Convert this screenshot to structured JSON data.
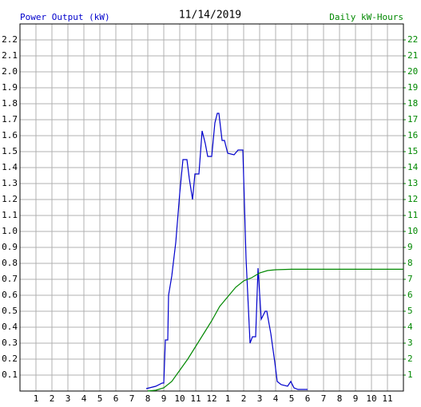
{
  "chart_data": {
    "type": "line",
    "title": "11/14/2019",
    "xlim": [
      0,
      24
    ],
    "xticks": [
      {
        "value": 1,
        "label": "1"
      },
      {
        "value": 2,
        "label": "2"
      },
      {
        "value": 3,
        "label": "3"
      },
      {
        "value": 4,
        "label": "4"
      },
      {
        "value": 5,
        "label": "5"
      },
      {
        "value": 6,
        "label": "6"
      },
      {
        "value": 7,
        "label": "7"
      },
      {
        "value": 8,
        "label": "8"
      },
      {
        "value": 9,
        "label": "9"
      },
      {
        "value": 10,
        "label": "10"
      },
      {
        "value": 11,
        "label": "11"
      },
      {
        "value": 12,
        "label": "12"
      },
      {
        "value": 13,
        "label": "1"
      },
      {
        "value": 14,
        "label": "2"
      },
      {
        "value": 15,
        "label": "3"
      },
      {
        "value": 16,
        "label": "4"
      },
      {
        "value": 17,
        "label": "5"
      },
      {
        "value": 18,
        "label": "6"
      },
      {
        "value": 19,
        "label": "7"
      },
      {
        "value": 20,
        "label": "8"
      },
      {
        "value": 21,
        "label": "9"
      },
      {
        "value": 22,
        "label": "10"
      },
      {
        "value": 23,
        "label": "11"
      }
    ],
    "ylim": [
      0,
      2.3
    ],
    "yticks": [
      0.1,
      0.2,
      0.3,
      0.4,
      0.5,
      0.6,
      0.7,
      0.8,
      0.9,
      {
        "value": 1,
        "label": "1.0"
      },
      1.1,
      1.2,
      1.3,
      1.4,
      1.5,
      1.6,
      1.7,
      1.8,
      1.9,
      {
        "value": 2,
        "label": "2.0"
      },
      2.1,
      2.2
    ],
    "y2lim": [
      0,
      23
    ],
    "y2ticks": [
      1,
      2,
      3,
      4,
      5,
      6,
      7,
      8,
      9,
      10,
      11,
      12,
      13,
      14,
      15,
      16,
      17,
      18,
      19,
      20,
      21,
      22
    ],
    "grid": true,
    "series": [
      {
        "name": "Power Output (kW)",
        "color": "#0000cc",
        "x": [
          7.9,
          8.5,
          8.9,
          9.0,
          9.1,
          9.25,
          9.3,
          9.5,
          9.75,
          10.0,
          10.2,
          10.45,
          10.6,
          10.8,
          10.95,
          11.2,
          11.4,
          11.6,
          11.75,
          12.0,
          12.2,
          12.35,
          12.45,
          12.65,
          12.8,
          13.0,
          13.4,
          13.65,
          13.95,
          14.15,
          14.4,
          14.55,
          14.75,
          14.9,
          15.1,
          15.35,
          15.45,
          15.7,
          15.95,
          16.1,
          16.35,
          16.75,
          16.95,
          17.15,
          17.4,
          18.0
        ],
        "values": [
          0.015,
          0.03,
          0.05,
          0.05,
          0.32,
          0.32,
          0.6,
          0.72,
          0.93,
          1.24,
          1.45,
          1.45,
          1.33,
          1.2,
          1.36,
          1.36,
          1.63,
          1.55,
          1.47,
          1.47,
          1.68,
          1.74,
          1.74,
          1.57,
          1.57,
          1.49,
          1.48,
          1.51,
          1.51,
          0.83,
          0.3,
          0.34,
          0.34,
          0.77,
          0.45,
          0.5,
          0.5,
          0.36,
          0.18,
          0.06,
          0.04,
          0.03,
          0.06,
          0.02,
          0.01,
          0.01
        ]
      },
      {
        "name": "Daily kW-Hours",
        "color": "#008800",
        "axis": "y2",
        "x": [
          8.0,
          8.5,
          9.0,
          9.5,
          10.0,
          10.5,
          11.0,
          11.5,
          12.0,
          12.5,
          13.0,
          13.5,
          14.0,
          14.5,
          15.0,
          15.5,
          16.0,
          17.0,
          24.0
        ],
        "values": [
          0,
          0.05,
          0.2,
          0.6,
          1.3,
          2.0,
          2.8,
          3.6,
          4.4,
          5.3,
          5.9,
          6.5,
          6.9,
          7.1,
          7.4,
          7.55,
          7.6,
          7.63,
          7.63
        ]
      }
    ]
  }
}
